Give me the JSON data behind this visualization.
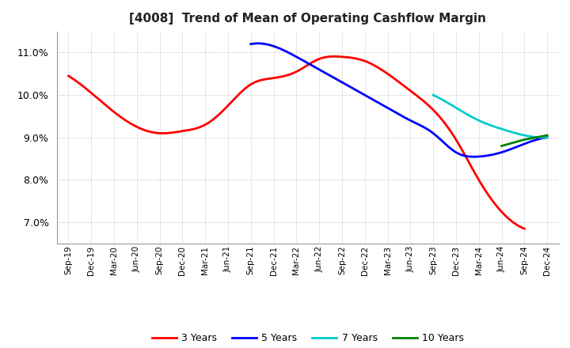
{
  "title": "[4008]  Trend of Mean of Operating Cashflow Margin",
  "background_color": "#ffffff",
  "grid_color": "#bbbbbb",
  "x_labels": [
    "Sep-19",
    "Dec-19",
    "Mar-20",
    "Jun-20",
    "Sep-20",
    "Dec-20",
    "Mar-21",
    "Jun-21",
    "Sep-21",
    "Dec-21",
    "Mar-22",
    "Jun-22",
    "Sep-22",
    "Dec-22",
    "Mar-23",
    "Jun-23",
    "Sep-23",
    "Dec-23",
    "Mar-24",
    "Jun-24",
    "Sep-24",
    "Dec-24"
  ],
  "ylim": [
    0.065,
    0.115
  ],
  "yticks": [
    0.07,
    0.08,
    0.09,
    0.1,
    0.11
  ],
  "series": {
    "3 Years": {
      "color": "#ff0000",
      "data_y": [
        0.1045,
        0.1005,
        0.096,
        0.0925,
        0.091,
        0.0915,
        0.093,
        0.0975,
        0.1025,
        0.104,
        0.1055,
        0.1085,
        0.109,
        0.108,
        0.105,
        0.101,
        0.0965,
        0.0895,
        0.08,
        0.0725,
        0.0685,
        null
      ]
    },
    "5 Years": {
      "color": "#0000ff",
      "data_y": [
        null,
        null,
        null,
        null,
        null,
        null,
        null,
        null,
        0.112,
        0.1115,
        0.109,
        0.106,
        0.103,
        0.1,
        0.097,
        0.094,
        0.091,
        0.0865,
        0.0855,
        0.0865,
        0.0885,
        0.09
      ]
    },
    "7 Years": {
      "color": "#00cccc",
      "data_y": [
        null,
        null,
        null,
        null,
        null,
        null,
        null,
        null,
        null,
        null,
        null,
        null,
        null,
        null,
        null,
        null,
        0.1,
        0.097,
        0.094,
        0.092,
        0.0905,
        0.09
      ]
    },
    "10 Years": {
      "color": "#008000",
      "data_y": [
        null,
        null,
        null,
        null,
        null,
        null,
        null,
        null,
        null,
        null,
        null,
        null,
        null,
        null,
        null,
        null,
        null,
        null,
        null,
        0.088,
        0.0895,
        0.0905
      ]
    }
  }
}
